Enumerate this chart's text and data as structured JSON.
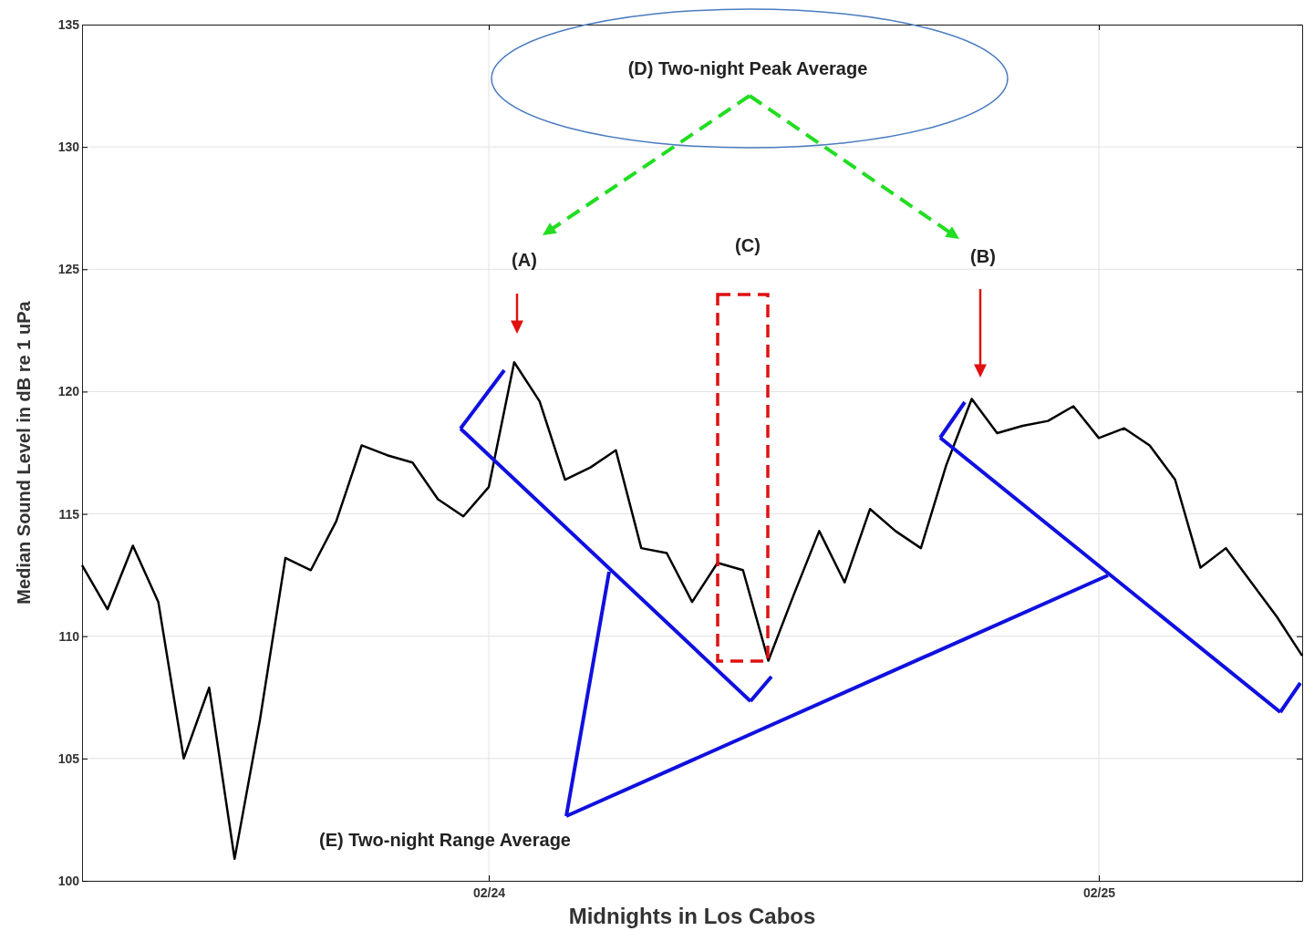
{
  "chart_data": {
    "type": "line",
    "xlabel": "Midnights in Los Cabos",
    "ylabel": "Median Sound Level in dB re 1 uPa",
    "categories": [
      null,
      null,
      null,
      null,
      null,
      null,
      null,
      null,
      null,
      null,
      null,
      null,
      null,
      null,
      null,
      null,
      "02/24",
      null,
      null,
      null,
      null,
      null,
      null,
      null,
      null,
      null,
      null,
      null,
      null,
      null,
      null,
      null,
      null,
      null,
      null,
      null,
      null,
      null,
      null,
      null,
      "02/25",
      null,
      null,
      null,
      null,
      null,
      null,
      null,
      null
    ],
    "series": [
      {
        "color": "#000000",
        "values": [
          112.9,
          111.1,
          113.7,
          111.4,
          105.0,
          107.9,
          100.9,
          106.6,
          113.2,
          112.7,
          114.7,
          117.8,
          117.4,
          117.1,
          115.6,
          114.9,
          116.1,
          121.2,
          119.6,
          116.4,
          116.9,
          117.6,
          113.6,
          113.4,
          111.4,
          113.0,
          112.7,
          109.0,
          111.7,
          114.3,
          112.2,
          115.2,
          114.3,
          113.6,
          117.0,
          119.7,
          118.3,
          118.6,
          118.8,
          119.4,
          118.1,
          118.5,
          117.8,
          116.4,
          112.8,
          113.6,
          112.2,
          110.8,
          109.2
        ]
      }
    ],
    "ylim": [
      100,
      135
    ],
    "yticks": [
      100,
      105,
      110,
      115,
      120,
      125,
      130,
      135
    ],
    "grid": true,
    "marker": "none",
    "line_style": "solid",
    "annotations": [
      "(A)",
      "(B)",
      "(C)",
      "(D) Two-night Peak Average",
      "(E) Two-night Range Average"
    ]
  }
}
